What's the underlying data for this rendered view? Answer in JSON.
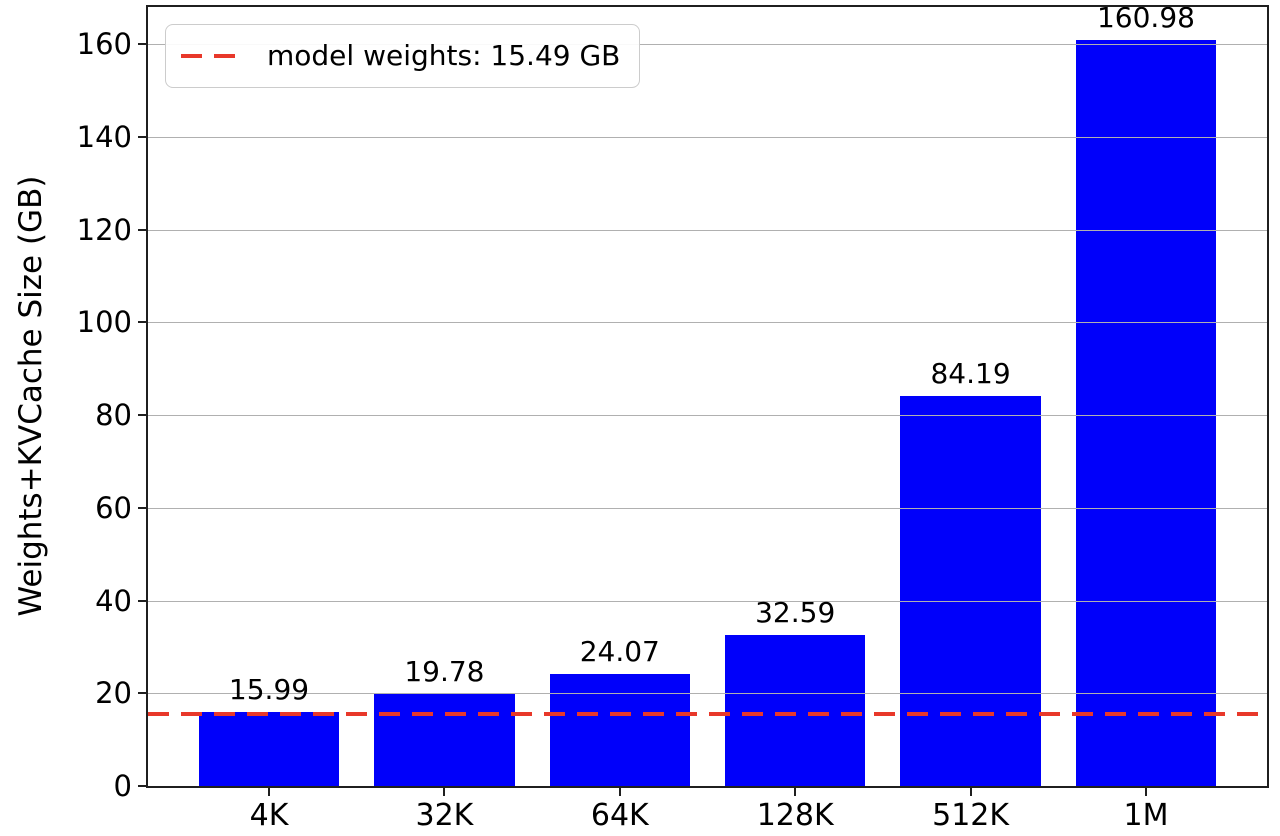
{
  "chart_data": {
    "type": "bar",
    "title": "",
    "categories": [
      "4K",
      "32K",
      "64K",
      "128K",
      "512K",
      "1M"
    ],
    "values": [
      15.99,
      19.78,
      24.07,
      32.59,
      84.19,
      160.98
    ],
    "bar_value_labels": [
      "15.99",
      "19.78",
      "24.07",
      "32.59",
      "84.19",
      "160.98"
    ],
    "xlabel": "",
    "ylabel": "Weights+KVCache Size (GB)",
    "ylim": [
      0,
      168
    ],
    "yticks": [
      0,
      20,
      40,
      60,
      80,
      100,
      120,
      140,
      160
    ],
    "ytick_labels": [
      "0",
      "20",
      "40",
      "60",
      "80",
      "100",
      "120",
      "140",
      "160"
    ],
    "grid": true,
    "grid_color": "#b0b0b0",
    "bar_color": "#0000fa",
    "reference_line": {
      "value": 15.49,
      "label": "model weights: 15.49 GB",
      "color": "#e8382a",
      "style": "dashed"
    },
    "legend_position": "upper-left"
  }
}
